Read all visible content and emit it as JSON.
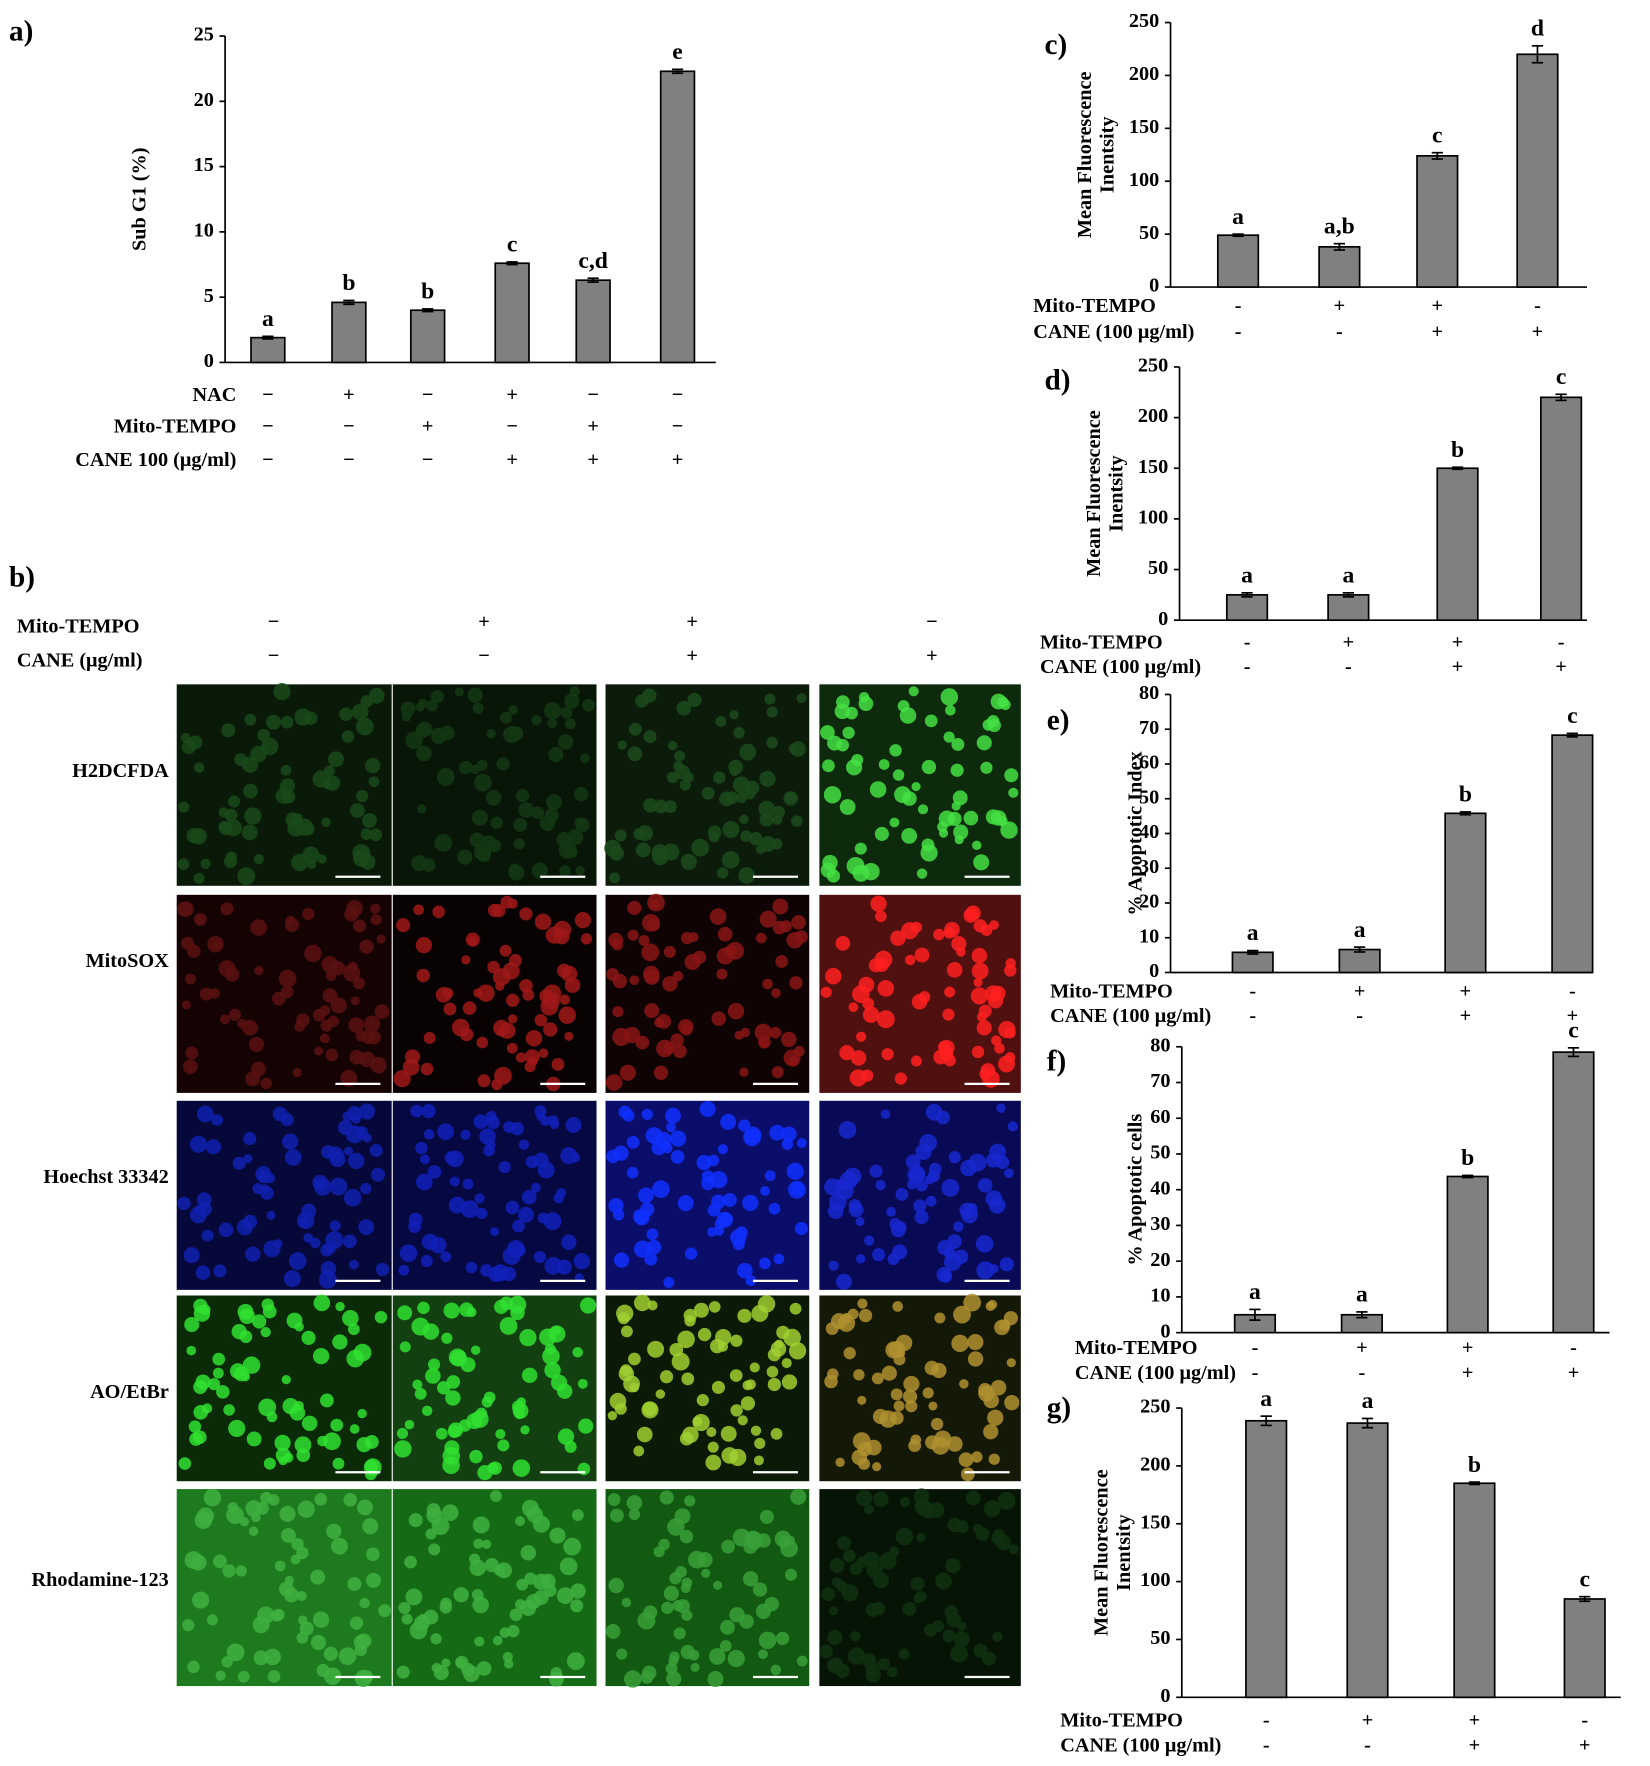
{
  "chart_data": [
    {
      "type": "bar",
      "label": "a)",
      "ylabel": [
        "Sub G1 (%)"
      ],
      "ylim": [
        0,
        25
      ],
      "yticks": [
        0,
        5,
        10,
        15,
        20,
        25
      ],
      "values": [
        1.9,
        4.6,
        4.0,
        7.6,
        6.3,
        22.3
      ],
      "errors": [
        0.1,
        0.15,
        0.1,
        0.1,
        0.15,
        0.15
      ],
      "annotations": [
        "a",
        "b",
        "b",
        "c",
        "c,d",
        "e"
      ],
      "color": "#808080",
      "treatments": [
        {
          "name": "NAC",
          "signs": [
            "−",
            "+",
            "−",
            "+",
            "−",
            "−"
          ]
        },
        {
          "name": "Mito-TEMPO",
          "signs": [
            "−",
            "−",
            "+",
            "−",
            "+",
            "−"
          ]
        },
        {
          "name": "CANE 100 (μg/ml)",
          "signs": [
            "−",
            "−",
            "−",
            "+",
            "+",
            "+"
          ]
        }
      ]
    },
    {
      "type": "bar",
      "label": "c)",
      "ylabel": [
        "Mean Fluorescence",
        "Inentsity"
      ],
      "ylim": [
        0,
        250
      ],
      "yticks": [
        0,
        50,
        100,
        150,
        200,
        250
      ],
      "values": [
        49,
        38,
        124,
        220
      ],
      "errors": [
        1,
        3,
        3,
        8
      ],
      "annotations": [
        "a",
        "a,b",
        "c",
        "d"
      ],
      "color": "#808080",
      "treatments": [
        {
          "name": "Mito-TEMPO",
          "signs": [
            "-",
            "+",
            "+",
            "-"
          ]
        },
        {
          "name": "CANE (100 μg/ml)",
          "signs": [
            "-",
            "-",
            "+",
            "+"
          ]
        }
      ]
    },
    {
      "type": "bar",
      "label": "d)",
      "ylabel": [
        "Mean Fluorescence",
        "Inentsity"
      ],
      "ylim": [
        0,
        250
      ],
      "yticks": [
        0,
        50,
        100,
        150,
        200,
        250
      ],
      "values": [
        25,
        25,
        150,
        220
      ],
      "errors": [
        2,
        2,
        1,
        3
      ],
      "annotations": [
        "a",
        "a",
        "b",
        "c"
      ],
      "color": "#808080",
      "treatments": [
        {
          "name": "Mito-TEMPO",
          "signs": [
            "-",
            "+",
            "+",
            "-"
          ]
        },
        {
          "name": "CANE (100 μg/ml)",
          "signs": [
            "-",
            "-",
            "+",
            "+"
          ]
        }
      ]
    },
    {
      "type": "bar",
      "label": "e)",
      "ylabel": [
        "% Apoptotic Index"
      ],
      "ylim": [
        0,
        80
      ],
      "yticks": [
        0,
        10,
        20,
        30,
        40,
        50,
        60,
        70,
        80
      ],
      "values": [
        5.8,
        6.6,
        45.8,
        68.3
      ],
      "errors": [
        0.5,
        0.7,
        0.4,
        0.5
      ],
      "annotations": [
        "a",
        "a",
        "b",
        "c"
      ],
      "color": "#808080",
      "treatments": [
        {
          "name": "Mito-TEMPO",
          "signs": [
            "-",
            "+",
            "+",
            "-"
          ]
        },
        {
          "name": "CANE (100 μg/ml)",
          "signs": [
            "-",
            "-",
            "+",
            "+"
          ]
        }
      ]
    },
    {
      "type": "bar",
      "label": "f)",
      "ylabel": [
        "% Apoptotic cells"
      ],
      "ylim": [
        0,
        80
      ],
      "yticks": [
        0,
        10,
        20,
        30,
        40,
        50,
        60,
        70,
        80
      ],
      "values": [
        5,
        5,
        43.7,
        78.5
      ],
      "errors": [
        1.5,
        0.8,
        0.3,
        1.2
      ],
      "annotations": [
        "a",
        "a",
        "b",
        "c"
      ],
      "color": "#808080",
      "treatments": [
        {
          "name": "Mito-TEMPO",
          "signs": [
            "-",
            "+",
            "+",
            "-"
          ]
        },
        {
          "name": "CANE (100 μg/ml)",
          "signs": [
            "-",
            "-",
            "+",
            "+"
          ]
        }
      ]
    },
    {
      "type": "bar",
      "label": "g)",
      "ylabel": [
        "Mean Fluorescence",
        "Inentsity"
      ],
      "ylim": [
        0,
        250
      ],
      "yticks": [
        0,
        50,
        100,
        150,
        200,
        250
      ],
      "values": [
        239,
        237,
        185,
        85
      ],
      "errors": [
        4,
        4,
        1,
        2
      ],
      "annotations": [
        "a",
        "a",
        "b",
        "c"
      ],
      "color": "#808080",
      "treatments": [
        {
          "name": "Mito-TEMPO",
          "signs": [
            "-",
            "+",
            "+",
            "-"
          ]
        },
        {
          "name": "CANE (100 μg/ml)",
          "signs": [
            "-",
            "-",
            "+",
            "+"
          ]
        }
      ]
    }
  ],
  "image_panel": {
    "label": "b)",
    "treatments": [
      {
        "name": "Mito-TEMPO",
        "signs": [
          "−",
          "+",
          "+",
          "−"
        ]
      },
      {
        "name": "CANE (μg/ml)",
        "signs": [
          "−",
          "−",
          "+",
          "+"
        ]
      }
    ],
    "rows": [
      "H2DCFDA",
      "MitoSOX",
      "Hoechst 33342",
      "AO/EtBr",
      "Rhodamine-123"
    ]
  }
}
